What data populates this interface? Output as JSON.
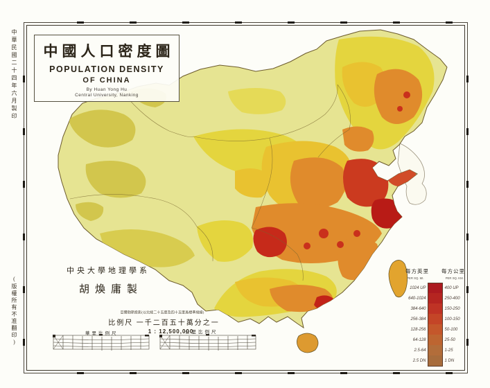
{
  "sheet": {
    "margin_date_note": "中華民國二十四年六月製印",
    "margin_copyright_note": "(版權所有不准翻印)"
  },
  "title_block": {
    "title_zh": "中國人口密度圖",
    "title_en_line1": "POPULATION DENSITY",
    "title_en_line2": "OF CHINA",
    "byline": "By Huan Yong Hu",
    "affiliation": "Central University, Nanking"
  },
  "author_block": {
    "department": "中央大學地理學系",
    "author": "胡煥庸製"
  },
  "scale_block": {
    "projection_note": "亞爾勃斯投影(以北緯二十五度及四十五度爲標準緯線)",
    "scale_label_zh": "比例尺  一千二百五十萬分之一",
    "scale_ratio": "1 : 12,500,000",
    "left_bar_label": "華里比例尺",
    "right_bar_label": "公里比例尺"
  },
  "legend": {
    "col_mi_header_zh": "每方英里",
    "col_km_header_zh": "每方公里",
    "col_mi_header_en": "PER SQ. MI.",
    "col_km_header_en": "PER SQ. KM.",
    "rows": [
      {
        "mi": "1024 UP",
        "km": "400 UP",
        "color": "#ac1a20"
      },
      {
        "mi": "640-1024",
        "km": "250-400",
        "color": "#b52521"
      },
      {
        "mi": "384-640",
        "km": "150-250",
        "color": "#bf3325"
      },
      {
        "mi": "256-384",
        "km": "100-150",
        "color": "#c44527"
      },
      {
        "mi": "128-256",
        "km": "50-100",
        "color": "#c4572b"
      },
      {
        "mi": "64-128",
        "km": "25-50",
        "color": "#bd6531"
      },
      {
        "mi": "2.5-64",
        "km": "1-25",
        "color": "#b26d3a"
      },
      {
        "mi": "2.5 DN",
        "km": "1 DN",
        "color": "#a76c3c"
      }
    ]
  },
  "map_palette": {
    "paper": "#fdfdf8",
    "base_land": "#e6e492",
    "olive_patch": "#d2c64d",
    "yellow": "#e4d53e",
    "golden": "#e9c230",
    "orange": "#e08b2c",
    "red": "#cb3a1f",
    "deep_red": "#b81b16",
    "coast_line": "#6b5a2c"
  }
}
